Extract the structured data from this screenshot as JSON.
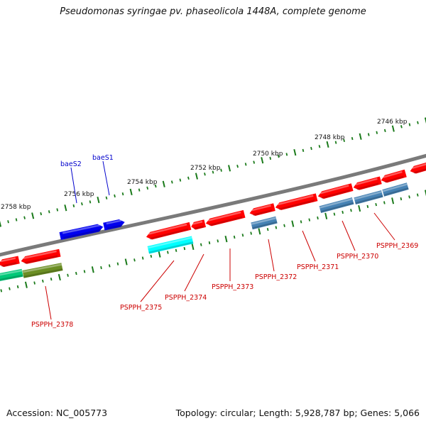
{
  "title": "Pseudomonas syringae pv. phaseolicola 1448A, complete genome",
  "footer": {
    "accession": "Accession: NC_005773",
    "stats": "Topology: circular; Length: 5,928,787 bp; Genes: 5,066"
  },
  "scale_labels": [
    "2746 kbp",
    "2748 kbp",
    "2750 kbp",
    "2752 kbp",
    "2754 kbp",
    "2756 kbp",
    "2758 kbp"
  ],
  "gene_labels": [
    "baeS1",
    "baeS2",
    "PSPPH_2369",
    "PSPPH_2370",
    "PSPPH_2371",
    "PSPPH_2372",
    "PSPPH_2373",
    "PSPPH_2374",
    "PSPPH_2375",
    "PSPPH_2378"
  ],
  "colors": {
    "backbone": "#7a7a7a",
    "ticks": "#1a7a1a",
    "cds": "#ff0000",
    "feature_blue": "#0000ee",
    "feature_steel": "#4682b4",
    "feature_cyan": "#00ffff",
    "feature_green": "#00c878",
    "feature_olive": "#6b8e23",
    "blue_label": "#0000cc",
    "red_label": "#cc0000"
  }
}
